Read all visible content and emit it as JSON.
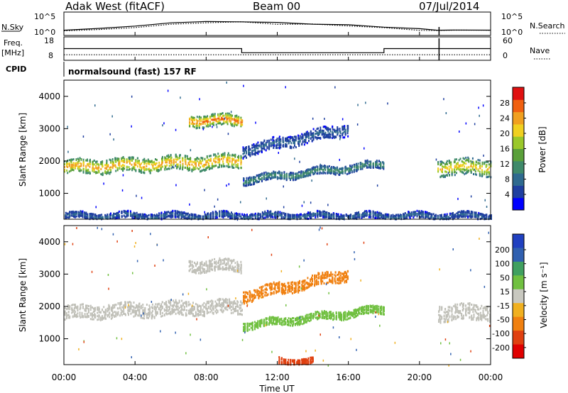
{
  "header": {
    "station": "Adak West (fitACF)",
    "beam": "Beam 00",
    "date": "07/Jul/2014"
  },
  "nsky_panel": {
    "left_label": "N.Sky",
    "right_label": "N.Search",
    "ticks": [
      "10^5",
      "10^0"
    ]
  },
  "freq_panel": {
    "left_label_1": "Freq.",
    "left_label_2": "[MHz]",
    "right_label": "Nave",
    "left_ticks": [
      "18",
      "8"
    ],
    "right_ticks": [
      "60",
      "0"
    ]
  },
  "cpid": {
    "label": "CPID",
    "program": "normalsound (fast) 157 RF"
  },
  "power_panel": {
    "ylabel": "Slant Range [km]",
    "yticks": [
      "4000",
      "3000",
      "2000",
      "1000"
    ],
    "colorbar_label": "Power [dB]",
    "colorbar_ticks": [
      "28",
      "24",
      "20",
      "16",
      "12",
      "8",
      "4"
    ]
  },
  "velocity_panel": {
    "ylabel": "Slant Range [km]",
    "yticks": [
      "4000",
      "3000",
      "2000",
      "1000"
    ],
    "colorbar_label": "Velocity [m s⁻¹]",
    "colorbar_ticks": [
      "200",
      "100",
      "50",
      "15",
      "-15",
      "-50",
      "-100",
      "-200"
    ]
  },
  "xaxis": {
    "label": "Time UT",
    "ticks": [
      "00:00",
      "04:00",
      "08:00",
      "12:00",
      "16:00",
      "20:00",
      "00:00"
    ]
  },
  "colors": {
    "power_scale": [
      "#0000ff",
      "#1f3fa0",
      "#2f6a8f",
      "#3f8a6a",
      "#5aa03a",
      "#9ac82a",
      "#f0d020",
      "#f0a020",
      "#f06010",
      "#e01010"
    ],
    "velocity_scale": [
      "#2040c0",
      "#3060b0",
      "#40a060",
      "#70c040",
      "#c8c8c0",
      "#f0b020",
      "#f08010",
      "#e04010",
      "#e00000"
    ],
    "ground_scatter": "#c0c0b8"
  },
  "chart_data": [
    {
      "type": "line",
      "title": "N.Sky / N.Search",
      "x_unit": "hours UT",
      "x": [
        0,
        2,
        4,
        6,
        8,
        10,
        12,
        14,
        16,
        18,
        20,
        21,
        22,
        24
      ],
      "series": [
        {
          "name": "N.Sky",
          "values": [
            1.0,
            1.3,
            1.8,
            2.6,
            3.0,
            3.0,
            2.7,
            2.5,
            2.2,
            1.7,
            1.2,
            1.0,
            1.1,
            1.0
          ]
        },
        {
          "name": "N.Search",
          "values": [
            0.8,
            1.0,
            1.5,
            2.3,
            2.8,
            2.9,
            2.5,
            2.3,
            2.0,
            1.5,
            1.0,
            0.9,
            0.9,
            0.8
          ]
        }
      ],
      "ylim_label": [
        "10^0",
        "10^5"
      ]
    },
    {
      "type": "line",
      "title": "Freq. / Nave",
      "x": [
        0,
        10,
        10,
        18,
        18,
        21,
        21,
        24
      ],
      "series": [
        {
          "name": "Freq. [MHz]",
          "values": [
            13,
            13,
            11,
            11,
            13,
            13,
            13,
            13
          ]
        },
        {
          "name": "Nave",
          "values": [
            10,
            10,
            10,
            10,
            10,
            10,
            10,
            10
          ]
        }
      ],
      "ylim": [
        8,
        18
      ]
    },
    {
      "type": "heatmap",
      "title": "Power [dB]",
      "x_unit": "hours UT",
      "ylabel": "Slant Range [km]",
      "xlim": [
        0,
        24
      ],
      "ylim": [
        200,
        4500
      ],
      "clim": [
        0,
        30
      ],
      "bands": [
        {
          "x": [
            0,
            10
          ],
          "y_center": [
            1800,
            2000
          ],
          "y_half_width": 220,
          "value": 20,
          "kind": "F-region"
        },
        {
          "x": [
            7,
            10
          ],
          "y_center": [
            3250,
            3250
          ],
          "y_half_width": 180,
          "value": 22,
          "kind": "ionospheric"
        },
        {
          "x": [
            10,
            18
          ],
          "y_center": [
            1400,
            1900
          ],
          "y_half_width": 120,
          "value": 10,
          "kind": "ionospheric"
        },
        {
          "x": [
            10,
            16
          ],
          "y_center": [
            2300,
            3000
          ],
          "y_half_width": 180,
          "value": 6,
          "kind": "ionospheric"
        },
        {
          "x": [
            21,
            24
          ],
          "y_center": [
            1800,
            1800
          ],
          "y_half_width": 250,
          "value": 18,
          "kind": "F-region"
        },
        {
          "x": [
            0,
            24
          ],
          "y_center": [
            300,
            300
          ],
          "y_half_width": 100,
          "value": 6,
          "kind": "near-range"
        }
      ]
    },
    {
      "type": "heatmap",
      "title": "Velocity [m s⁻¹]",
      "x_unit": "hours UT",
      "ylabel": "Slant Range [km]",
      "xlim": [
        0,
        24
      ],
      "ylim": [
        200,
        4500
      ],
      "clim": [
        -200,
        200
      ],
      "bands": [
        {
          "x": [
            0,
            10
          ],
          "y_center": [
            1800,
            2000
          ],
          "y_half_width": 220,
          "value": 0,
          "kind": "ground"
        },
        {
          "x": [
            7,
            10
          ],
          "y_center": [
            3250,
            3250
          ],
          "y_half_width": 180,
          "value": 0,
          "kind": "ground"
        },
        {
          "x": [
            10,
            18
          ],
          "y_center": [
            1400,
            1900
          ],
          "y_half_width": 120,
          "value": 25,
          "kind": "ionospheric"
        },
        {
          "x": [
            10,
            16
          ],
          "y_center": [
            2300,
            3000
          ],
          "y_half_width": 180,
          "value": -60,
          "kind": "ionospheric"
        },
        {
          "x": [
            21,
            24
          ],
          "y_center": [
            1800,
            1800
          ],
          "y_half_width": 250,
          "value": 0,
          "kind": "ground"
        },
        {
          "x": [
            12,
            14
          ],
          "y_center": [
            300,
            300
          ],
          "y_half_width": 100,
          "value": -120,
          "kind": "ionospheric"
        }
      ]
    }
  ]
}
